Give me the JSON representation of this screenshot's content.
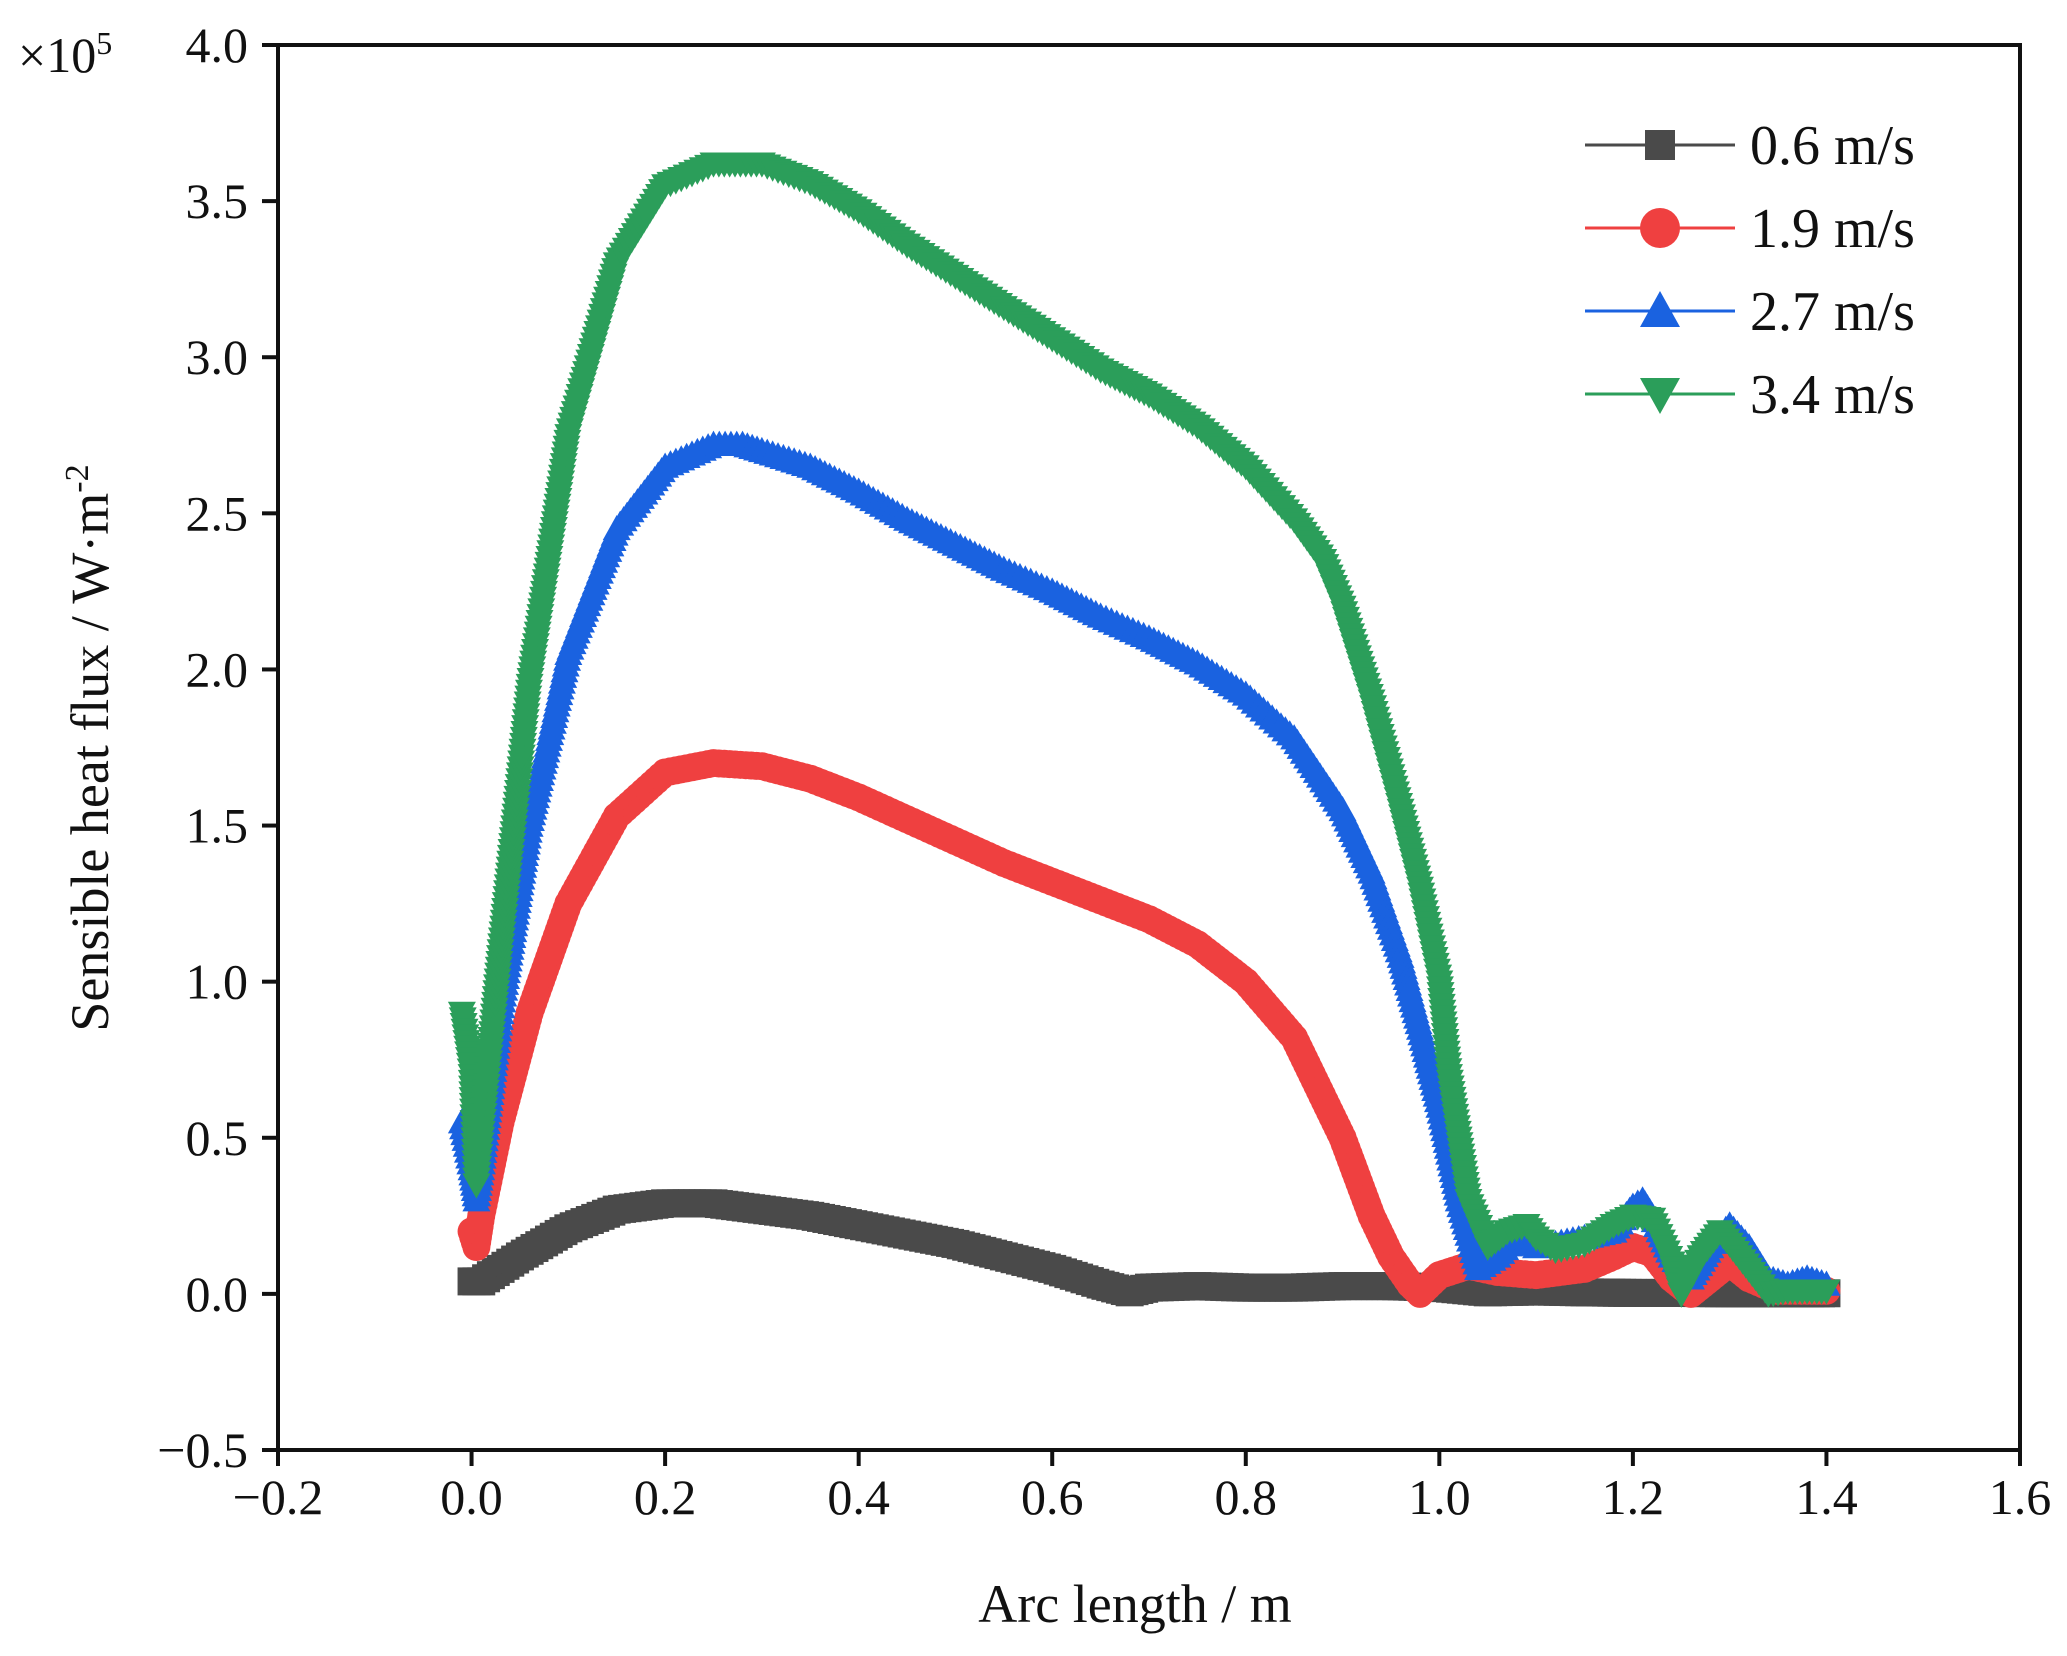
{
  "chart_data": {
    "type": "scatter",
    "title": "",
    "xlabel": "Arc length / m",
    "ylabel": "Sensible heat flux / W·m",
    "ylabel_superscript": "-2",
    "scale_prefix": "×10",
    "scale_exponent": "5",
    "xlim": [
      -0.2,
      1.6
    ],
    "ylim": [
      -0.5,
      4.0
    ],
    "xticks": [
      "−0.2",
      "0.0",
      "0.2",
      "0.4",
      "0.6",
      "0.8",
      "1.0",
      "1.2",
      "1.4",
      "1.6"
    ],
    "yticks": [
      "−0.5",
      "0.0",
      "0.5",
      "1.0",
      "1.5",
      "2.0",
      "2.5",
      "3.0",
      "3.5",
      "4.0"
    ],
    "legend_position": "top-right",
    "series": [
      {
        "name": "0.6 m/s",
        "color": "#4a4a4a",
        "marker": "square",
        "x": [
          0.0,
          0.01,
          0.05,
          0.1,
          0.15,
          0.2,
          0.25,
          0.3,
          0.35,
          0.4,
          0.45,
          0.5,
          0.55,
          0.6,
          0.65,
          0.68,
          0.7,
          0.75,
          0.8,
          0.85,
          0.9,
          0.95,
          1.0,
          1.05,
          1.1,
          1.15,
          1.2,
          1.25,
          1.3,
          1.35,
          1.4
        ],
        "values": [
          0.04,
          0.04,
          0.12,
          0.21,
          0.27,
          0.29,
          0.29,
          0.27,
          0.25,
          0.22,
          0.19,
          0.16,
          0.12,
          0.08,
          0.03,
          0.005,
          0.02,
          0.025,
          0.02,
          0.02,
          0.025,
          0.025,
          0.02,
          0.005,
          0.008,
          0.005,
          0.003,
          0.003,
          0.002,
          0.002,
          0.002
        ]
      },
      {
        "name": "1.9 m/s",
        "color": "#ef4040",
        "marker": "circle",
        "x": [
          0.0,
          0.005,
          0.01,
          0.03,
          0.06,
          0.1,
          0.15,
          0.2,
          0.25,
          0.3,
          0.35,
          0.4,
          0.45,
          0.5,
          0.55,
          0.6,
          0.65,
          0.7,
          0.75,
          0.8,
          0.85,
          0.9,
          0.93,
          0.95,
          0.97,
          0.98,
          1.0,
          1.03,
          1.06,
          1.1,
          1.15,
          1.18,
          1.2,
          1.22,
          1.24,
          1.26,
          1.28,
          1.3,
          1.32,
          1.35,
          1.38,
          1.4
        ],
        "values": [
          0.2,
          0.15,
          0.25,
          0.55,
          0.9,
          1.25,
          1.53,
          1.67,
          1.7,
          1.69,
          1.65,
          1.59,
          1.52,
          1.45,
          1.38,
          1.32,
          1.26,
          1.2,
          1.12,
          1.0,
          0.82,
          0.5,
          0.25,
          0.12,
          0.03,
          0.0,
          0.06,
          0.09,
          0.07,
          0.06,
          0.08,
          0.12,
          0.15,
          0.13,
          0.05,
          0.0,
          0.05,
          0.1,
          0.05,
          0.01,
          0.01,
          0.01
        ]
      },
      {
        "name": "2.7 m/s",
        "color": "#1a62e0",
        "marker": "triangle-up",
        "x": [
          -0.01,
          0.0,
          0.005,
          0.01,
          0.03,
          0.06,
          0.1,
          0.15,
          0.2,
          0.25,
          0.28,
          0.3,
          0.35,
          0.4,
          0.45,
          0.5,
          0.55,
          0.6,
          0.65,
          0.7,
          0.75,
          0.8,
          0.85,
          0.9,
          0.93,
          0.96,
          0.98,
          1.0,
          1.02,
          1.04,
          1.06,
          1.08,
          1.1,
          1.12,
          1.15,
          1.18,
          1.2,
          1.21,
          1.22,
          1.24,
          1.26,
          1.28,
          1.3,
          1.32,
          1.34,
          1.36,
          1.38,
          1.4
        ],
        "values": [
          0.55,
          0.4,
          0.3,
          0.4,
          0.9,
          1.5,
          2.05,
          2.45,
          2.65,
          2.72,
          2.72,
          2.7,
          2.65,
          2.57,
          2.48,
          2.4,
          2.32,
          2.25,
          2.17,
          2.1,
          2.02,
          1.92,
          1.78,
          1.55,
          1.35,
          1.08,
          0.85,
          0.6,
          0.3,
          0.08,
          0.12,
          0.18,
          0.15,
          0.16,
          0.18,
          0.2,
          0.28,
          0.3,
          0.25,
          0.12,
          0.05,
          0.15,
          0.22,
          0.15,
          0.05,
          0.03,
          0.05,
          0.03
        ]
      },
      {
        "name": "3.4 m/s",
        "color": "#2b9e5a",
        "marker": "triangle-down",
        "x": [
          -0.01,
          0.0,
          0.005,
          0.01,
          0.03,
          0.06,
          0.1,
          0.15,
          0.2,
          0.25,
          0.3,
          0.35,
          0.4,
          0.45,
          0.5,
          0.55,
          0.6,
          0.65,
          0.7,
          0.75,
          0.8,
          0.85,
          0.88,
          0.9,
          0.93,
          0.96,
          0.98,
          1.0,
          1.01,
          1.03,
          1.05,
          1.07,
          1.09,
          1.1,
          1.12,
          1.15,
          1.18,
          1.2,
          1.22,
          1.24,
          1.25,
          1.27,
          1.29,
          1.3,
          1.32,
          1.34,
          1.36,
          1.38,
          1.4
        ],
        "values": [
          0.9,
          0.7,
          0.35,
          0.5,
          1.1,
          1.95,
          2.75,
          3.3,
          3.55,
          3.62,
          3.62,
          3.56,
          3.47,
          3.36,
          3.26,
          3.16,
          3.06,
          2.96,
          2.88,
          2.78,
          2.65,
          2.48,
          2.35,
          2.2,
          1.9,
          1.55,
          1.3,
          1.0,
          0.7,
          0.3,
          0.15,
          0.2,
          0.22,
          0.18,
          0.14,
          0.16,
          0.22,
          0.25,
          0.24,
          0.1,
          0.0,
          0.12,
          0.2,
          0.16,
          0.08,
          0.0,
          0.01,
          0.01,
          0.01
        ]
      }
    ]
  }
}
